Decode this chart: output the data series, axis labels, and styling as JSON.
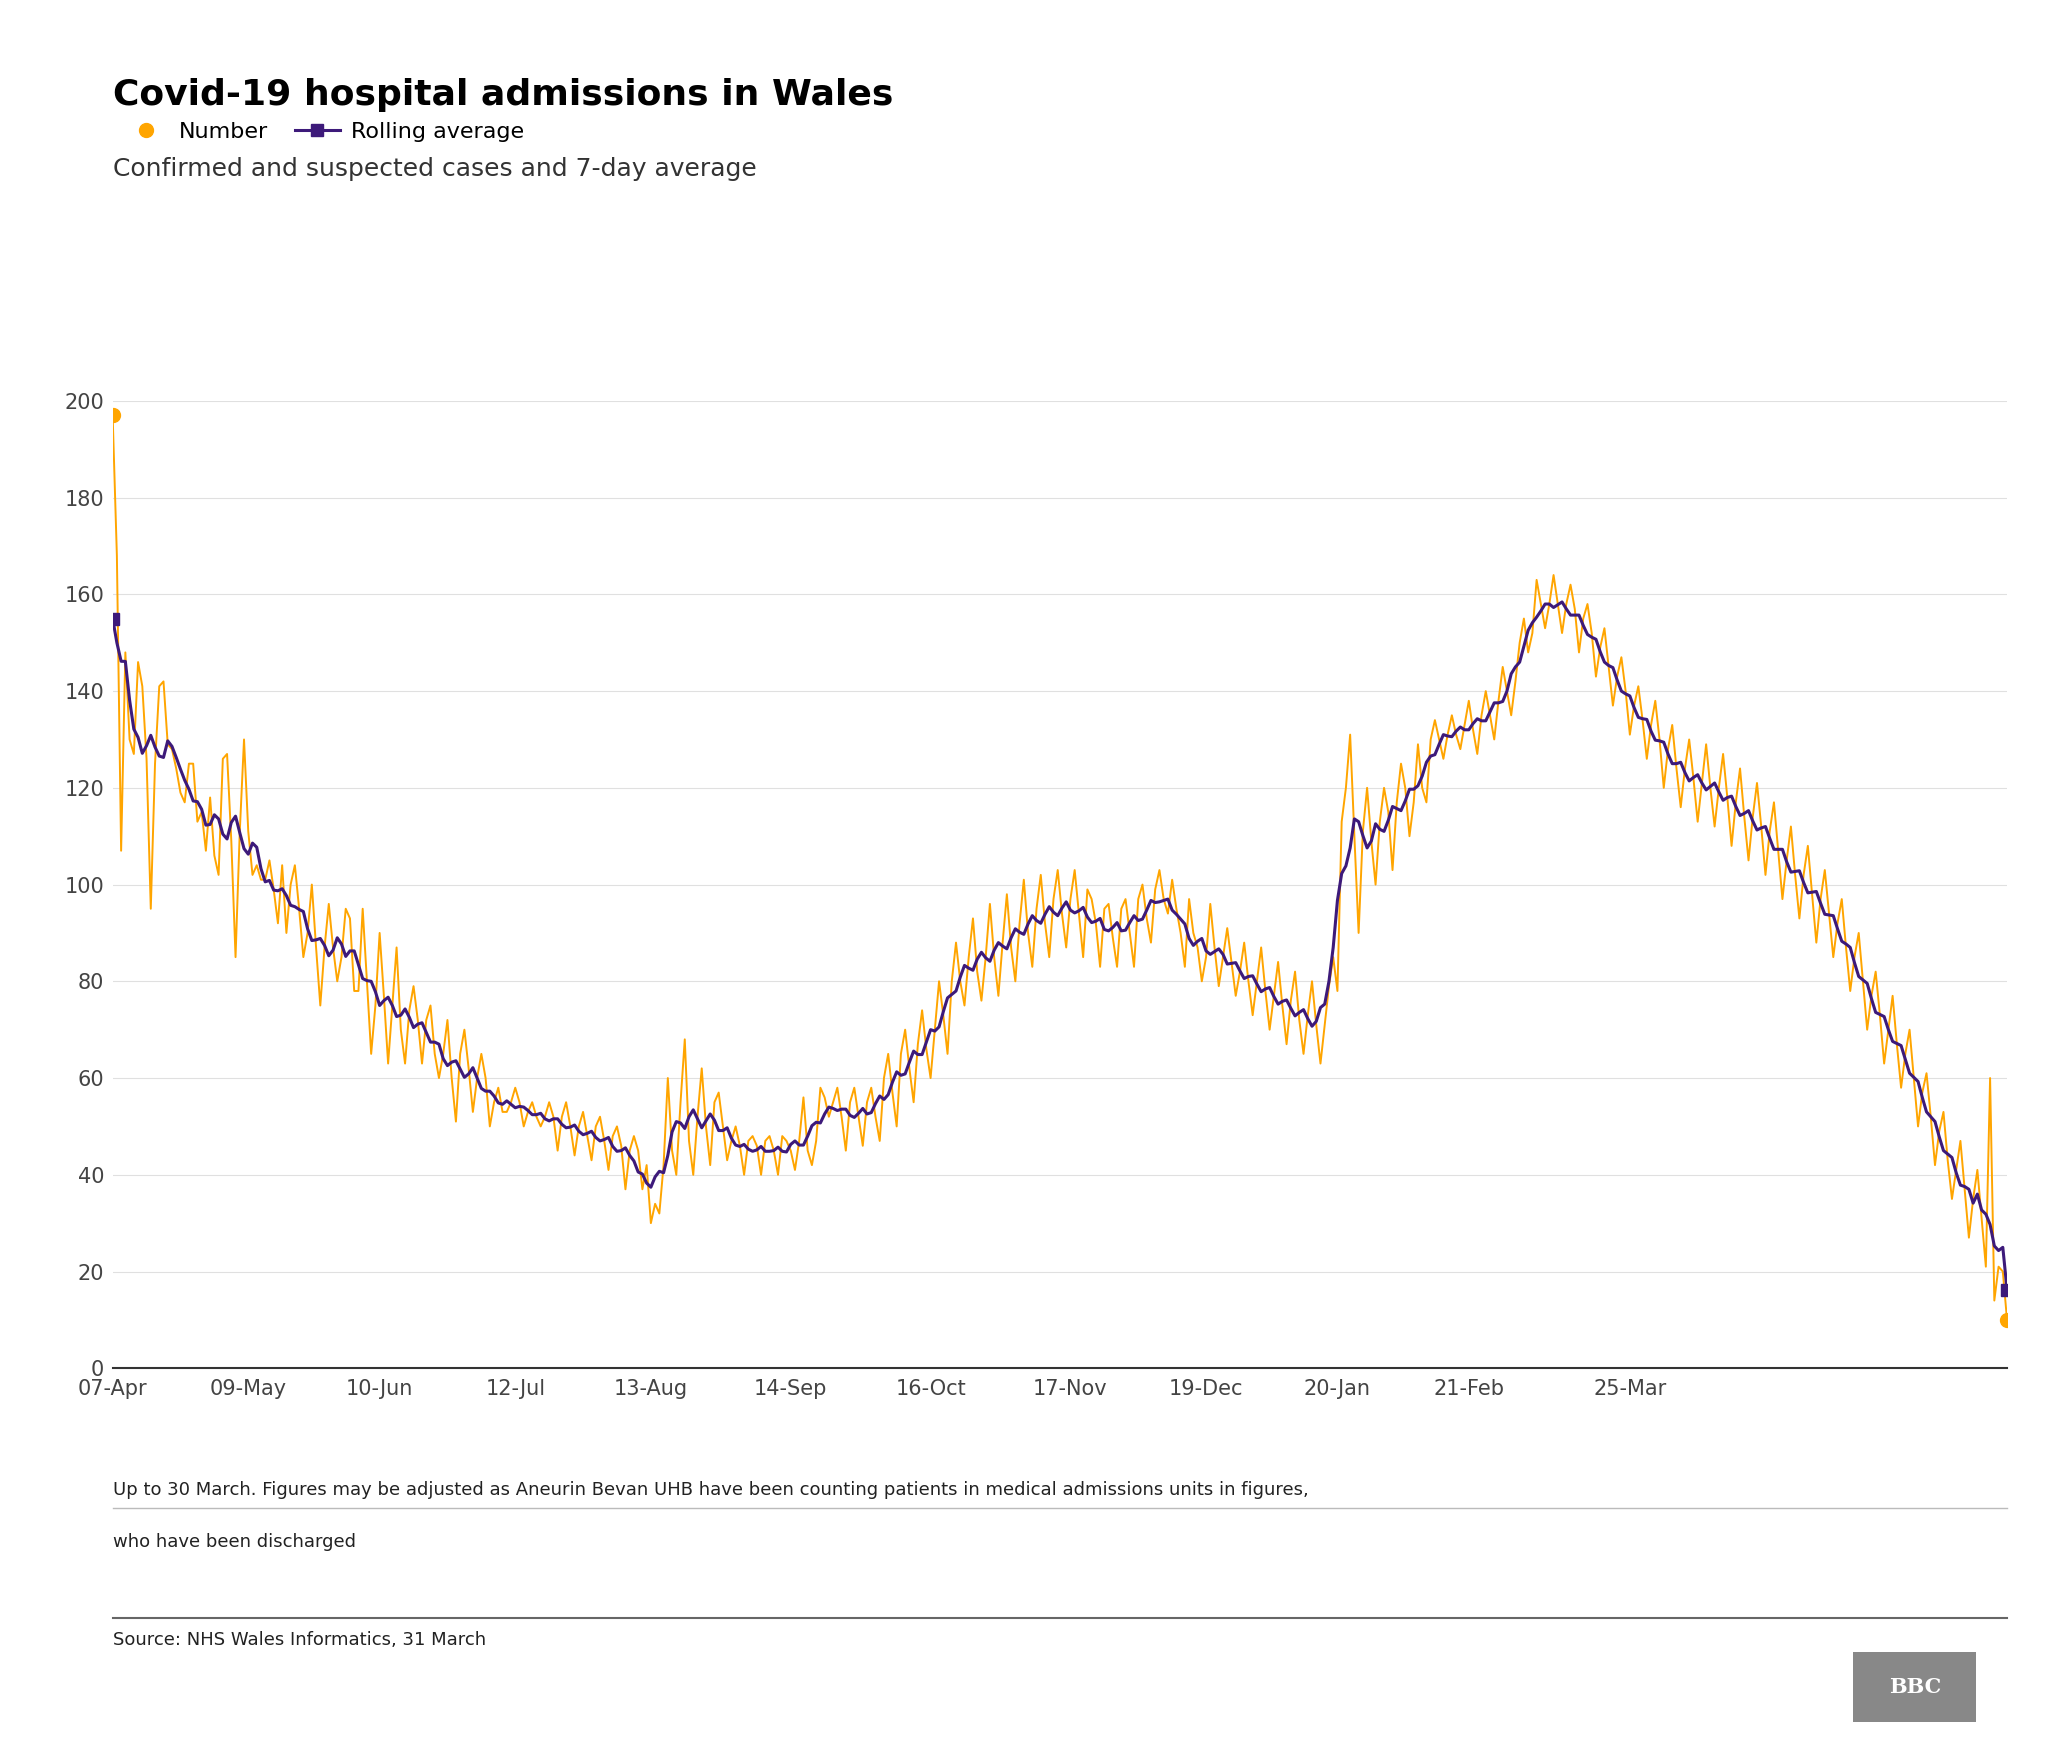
{
  "title": "Covid-19 hospital admissions in Wales",
  "subtitle": "Confirmed and suspected cases and 7-day average",
  "legend_number": "Number",
  "legend_rolling": "Rolling average",
  "footnote1": "Up to 30 March. Figures may be adjusted as Aneurin Bevan UHB have been counting patients in medical admissions units in figures,",
  "footnote2": "who have been discharged",
  "source": "Source: NHS Wales Informatics, 31 March",
  "orange_color": "#FFA500",
  "purple_color": "#3D1A7A",
  "background_color": "#FFFFFF",
  "ylim": [
    0,
    200
  ],
  "yticks": [
    0,
    20,
    40,
    60,
    80,
    100,
    120,
    140,
    160,
    180,
    200
  ],
  "title_fontsize": 26,
  "subtitle_fontsize": 18,
  "tick_fontsize": 15,
  "legend_fontsize": 16,
  "footnote_fontsize": 13,
  "source_fontsize": 13,
  "daily_values": [
    197,
    168,
    107,
    148,
    130,
    127,
    146,
    141,
    126,
    95,
    125,
    141,
    142,
    129,
    128,
    124,
    119,
    117,
    125,
    125,
    113,
    115,
    107,
    118,
    106,
    102,
    126,
    127,
    109,
    85,
    111,
    130,
    111,
    102,
    104,
    101,
    101,
    105,
    99,
    92,
    104,
    90,
    100,
    104,
    95,
    85,
    90,
    100,
    87,
    75,
    87,
    96,
    87,
    80,
    85,
    95,
    93,
    78,
    78,
    95,
    80,
    65,
    75,
    90,
    77,
    63,
    75,
    87,
    70,
    63,
    74,
    79,
    72,
    63,
    72,
    75,
    65,
    60,
    65,
    72,
    60,
    51,
    65,
    70,
    62,
    53,
    60,
    65,
    60,
    50,
    55,
    58,
    53,
    53,
    55,
    58,
    55,
    50,
    53,
    55,
    52,
    50,
    52,
    55,
    52,
    45,
    52,
    55,
    50,
    44,
    50,
    53,
    48,
    43,
    50,
    52,
    47,
    41,
    48,
    50,
    46,
    37,
    45,
    48,
    45,
    37,
    42,
    30,
    34,
    32,
    42,
    60,
    45,
    40,
    55,
    68,
    47,
    40,
    52,
    62,
    50,
    42,
    55,
    57,
    50,
    43,
    47,
    50,
    46,
    40,
    47,
    48,
    46,
    40,
    47,
    48,
    45,
    40,
    48,
    47,
    45,
    41,
    47,
    56,
    45,
    42,
    47,
    58,
    56,
    52,
    55,
    58,
    52,
    45,
    55,
    58,
    52,
    46,
    55,
    58,
    52,
    47,
    60,
    65,
    57,
    50,
    65,
    70,
    62,
    55,
    67,
    74,
    66,
    60,
    70,
    80,
    73,
    65,
    80,
    88,
    80,
    75,
    85,
    93,
    82,
    76,
    85,
    96,
    85,
    77,
    88,
    98,
    87,
    80,
    92,
    101,
    90,
    83,
    95,
    102,
    92,
    85,
    97,
    103,
    94,
    87,
    97,
    103,
    94,
    85,
    99,
    97,
    92,
    83,
    95,
    96,
    89,
    83,
    95,
    97,
    90,
    83,
    97,
    100,
    93,
    88,
    99,
    103,
    97,
    94,
    101,
    95,
    90,
    83,
    97,
    90,
    87,
    80,
    85,
    96,
    87,
    79,
    85,
    91,
    84,
    77,
    82,
    88,
    80,
    73,
    80,
    87,
    78,
    70,
    77,
    84,
    75,
    67,
    76,
    82,
    72,
    65,
    73,
    80,
    71,
    63,
    71,
    79,
    85,
    78,
    113,
    120,
    131,
    110,
    90,
    111,
    120,
    109,
    100,
    113,
    120,
    115,
    103,
    117,
    125,
    120,
    110,
    117,
    129,
    120,
    117,
    130,
    134,
    130,
    126,
    131,
    135,
    131,
    128,
    133,
    138,
    132,
    127,
    135,
    140,
    135,
    130,
    138,
    145,
    140,
    135,
    142,
    150,
    155,
    148,
    152,
    163,
    158,
    153,
    158,
    164,
    158,
    152,
    158,
    162,
    157,
    148,
    155,
    158,
    152,
    143,
    149,
    153,
    145,
    137,
    143,
    147,
    140,
    131,
    137,
    141,
    134,
    126,
    133,
    138,
    130,
    120,
    128,
    133,
    124,
    116,
    124,
    130,
    122,
    113,
    121,
    129,
    120,
    112,
    120,
    127,
    118,
    108,
    117,
    124,
    114,
    105,
    114,
    121,
    112,
    102,
    111,
    117,
    107,
    97,
    105,
    112,
    102,
    93,
    102,
    108,
    98,
    88,
    97,
    103,
    94,
    85,
    92,
    97,
    87,
    78,
    85,
    90,
    80,
    70,
    77,
    82,
    73,
    63,
    70,
    77,
    67,
    58,
    65,
    70,
    60,
    50,
    57,
    61,
    52,
    42,
    49,
    53,
    43,
    35,
    41,
    47,
    37,
    27,
    35,
    41,
    31,
    21,
    60,
    14,
    21,
    20,
    10
  ],
  "x_tick_labels": [
    "07-Apr",
    "09-May",
    "10-Jun",
    "12-Jul",
    "13-Aug",
    "14-Sep",
    "16-Oct",
    "17-Nov",
    "19-Dec",
    "20-Jan",
    "21-Feb",
    "25-Mar"
  ],
  "x_tick_days": [
    0,
    32,
    63,
    95,
    127,
    160,
    193,
    226,
    258,
    289,
    320,
    358
  ]
}
